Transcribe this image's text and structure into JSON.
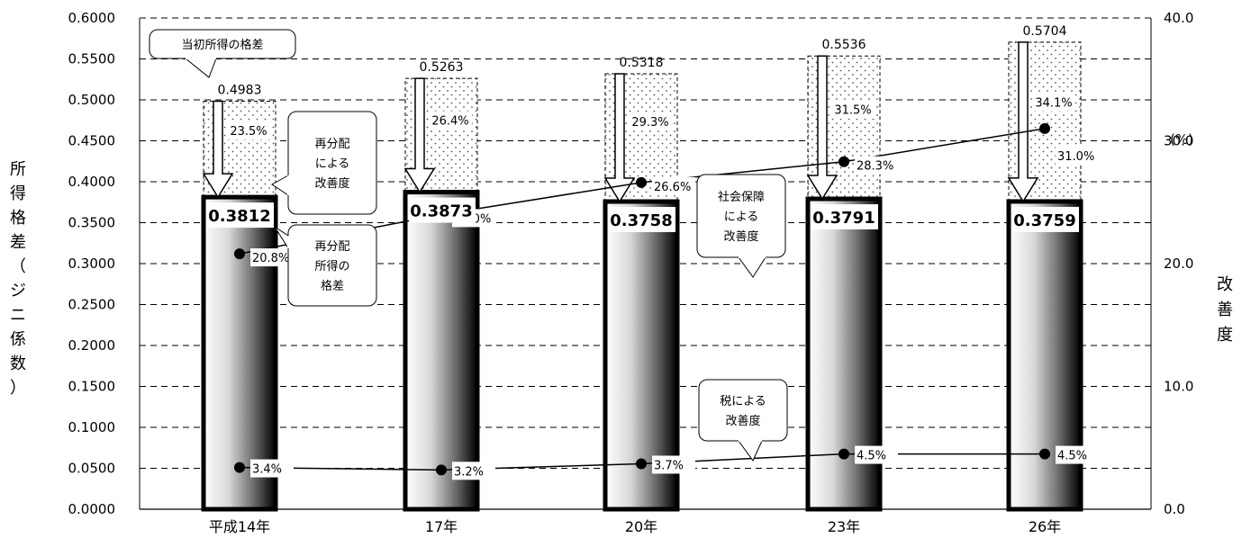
{
  "chart_data": {
    "type": "bar",
    "categories": [
      "平成14年",
      "17年",
      "20年",
      "23年",
      "26年"
    ],
    "series": [
      {
        "name": "当初所得の格差",
        "values": [
          0.4983,
          0.5263,
          0.5318,
          0.5536,
          0.5704
        ]
      },
      {
        "name": "再分配所得の格差",
        "values": [
          0.3812,
          0.3873,
          0.3758,
          0.3791,
          0.3759
        ]
      }
    ],
    "redistribution_improvement_labels": [
      "23.5%",
      "26.4%",
      "29.3%",
      "31.5%",
      "34.1%"
    ],
    "lines": [
      {
        "name": "社会保障による改善度",
        "values": [
          20.8,
          24.0,
          26.6,
          28.3,
          31.0
        ],
        "labels": [
          "20.8%",
          "24.0%",
          "26.6%",
          "28.3%",
          "31.0%"
        ]
      },
      {
        "name": "税による改善度",
        "values": [
          3.4,
          3.2,
          3.7,
          4.5,
          4.5
        ],
        "labels": [
          "3.4%",
          "3.2%",
          "3.7%",
          "4.5%",
          "4.5%"
        ]
      }
    ],
    "top_labels": [
      "0.4983",
      "0.5263",
      "0.5318",
      "0.5536",
      "0.5704"
    ],
    "gini_labels": [
      "0.3812",
      "0.3873",
      "0.3758",
      "0.3791",
      "0.3759"
    ],
    "ylabel_left": "所得格差（ジニ係数）",
    "ylabel_right": "改善度",
    "right_unit": "(%)",
    "ylim_left": [
      0,
      0.6
    ],
    "ylim_right": [
      0,
      40
    ],
    "yticks_left": [
      "0.0000",
      "0.0500",
      "0.1000",
      "0.1500",
      "0.2000",
      "0.2500",
      "0.3000",
      "0.3500",
      "0.4000",
      "0.4500",
      "0.5000",
      "0.5500",
      "0.6000"
    ],
    "yticks_right": [
      "0.0",
      "10.0",
      "20.0",
      "30.0",
      "40.0"
    ],
    "grid": "dashed horizontal",
    "callouts": {
      "initial": "当初所得の格差",
      "redistribution_lines": [
        "再分配",
        "による",
        "改善度"
      ],
      "redistributed_lines": [
        "再分配",
        "所得の",
        "格差"
      ],
      "social_lines": [
        "社会保障",
        "による",
        "改善度"
      ],
      "tax_lines": [
        "税による",
        "改善度"
      ]
    }
  }
}
